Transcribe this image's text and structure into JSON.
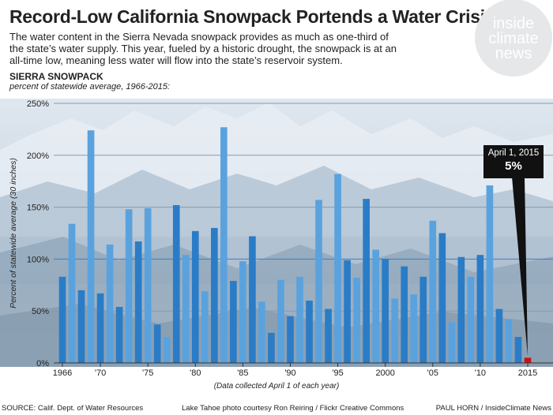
{
  "title": "Record-Low California Snowpack Portends a Water Crisis",
  "subtitle": "The water content in the Sierra Nevada snowpack provides as much as one-third of the state’s water supply. This year, fueled by a historic drought, the snowpack is at an all-time low, meaning less water will flow into the state’s reservoir system.",
  "logo": {
    "line1": "inside",
    "line2": "climate",
    "line3": "news"
  },
  "section_title": "SIERRA SNOWPACK",
  "section_subtitle": "percent of statewide average, 1966-2015:",
  "x_note": "(Data collected April 1 of each year)",
  "callout": {
    "date": "April 1, 2015",
    "value": "5%"
  },
  "credits": {
    "source": "SOURCE: Calif. Dept. of Water Resources",
    "photo": "Lake Tahoe photo courtesy Ron Reiring / Flickr Creative Commons",
    "author": "PAUL HORN / InsideClimate News"
  },
  "colors": {
    "dark_bar": "#2a7cc7",
    "light_bar": "#5aa2de",
    "highlight": "#cc1111",
    "sky": "#d3dde8",
    "mountain": "#8aa0b4"
  },
  "chart_data": {
    "type": "bar",
    "title": "SIERRA SNOWPACK",
    "ylabel": "Percent of statewide average (30 inches)",
    "xlabel": "(Data collected April 1 of each year)",
    "ylim": [
      0,
      250
    ],
    "yticks": [
      0,
      50,
      100,
      150,
      200,
      250
    ],
    "ytick_labels": [
      "0%",
      "50%",
      "100%",
      "150%",
      "200%",
      "250%"
    ],
    "xtick_labels": [
      {
        "year": 1966,
        "label": "1966"
      },
      {
        "year": 1970,
        "label": "'70"
      },
      {
        "year": 1975,
        "label": "'75"
      },
      {
        "year": 1980,
        "label": "'80"
      },
      {
        "year": 1985,
        "label": "'85"
      },
      {
        "year": 1990,
        "label": "'90"
      },
      {
        "year": 1995,
        "label": "'95"
      },
      {
        "year": 2000,
        "label": "2000"
      },
      {
        "year": 2005,
        "label": "'05"
      },
      {
        "year": 2010,
        "label": "'10"
      },
      {
        "year": 2015,
        "label": "2015"
      }
    ],
    "years": [
      1966,
      1967,
      1968,
      1969,
      1970,
      1971,
      1972,
      1973,
      1974,
      1975,
      1976,
      1977,
      1978,
      1979,
      1980,
      1981,
      1982,
      1983,
      1984,
      1985,
      1986,
      1987,
      1988,
      1989,
      1990,
      1991,
      1992,
      1993,
      1994,
      1995,
      1996,
      1997,
      1998,
      1999,
      2000,
      2001,
      2002,
      2003,
      2004,
      2005,
      2006,
      2007,
      2008,
      2009,
      2010,
      2011,
      2012,
      2013,
      2014,
      2015
    ],
    "values": [
      83,
      134,
      70,
      224,
      67,
      114,
      54,
      148,
      117,
      149,
      37,
      25,
      152,
      104,
      127,
      69,
      130,
      227,
      79,
      98,
      122,
      59,
      29,
      80,
      45,
      83,
      60,
      157,
      52,
      182,
      99,
      82,
      158,
      109,
      100,
      62,
      93,
      66,
      83,
      137,
      125,
      39,
      102,
      83,
      104,
      171,
      52,
      42,
      25,
      5
    ],
    "highlight_year": 2015
  }
}
